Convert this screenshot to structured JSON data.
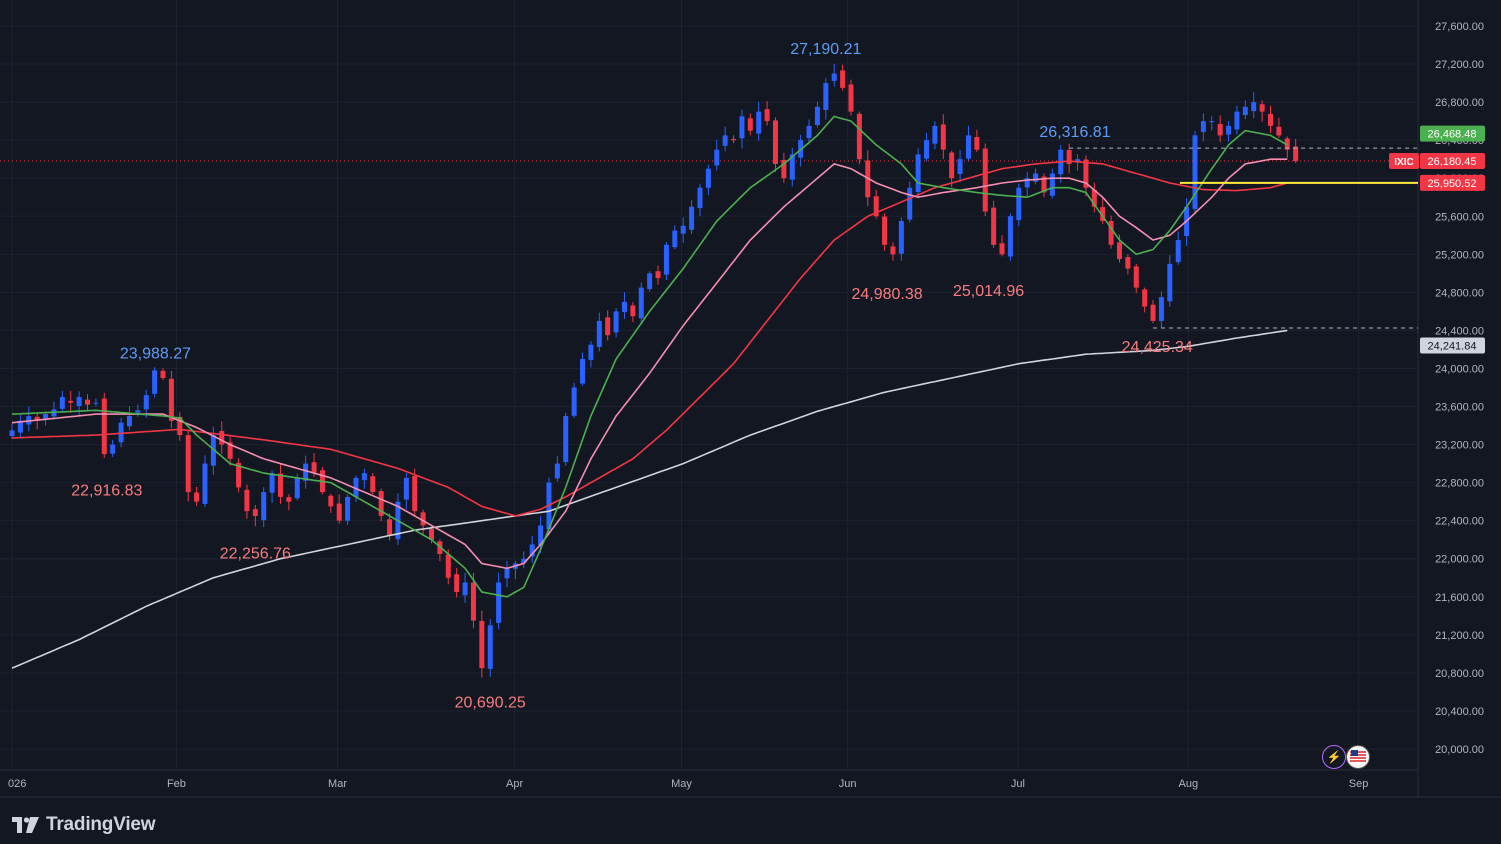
{
  "brand": {
    "name": "TradingView",
    "icon": "tradingview-logo-icon"
  },
  "util_icons": [
    "lightning-icon",
    "us-flag-icon"
  ],
  "colors": {
    "background": "#131722",
    "up": "#2962ff",
    "down": "#f23645",
    "ma_fast": "#4caf50",
    "ma_mid": "#f48fb1",
    "ma_slow": "#f23645",
    "ma_long": "#d1d4dc",
    "support": "#ffeb3b",
    "grid": "#1e2230",
    "axis_text": "#b2b5be"
  },
  "chart_data": {
    "type": "candlestick",
    "symbol": "IXIC",
    "y_range": [
      19860,
      27800
    ],
    "price_ticks": [
      "20,000.00",
      "20,400.00",
      "20,800.00",
      "21,200.00",
      "21,600.00",
      "22,000.00",
      "22,400.00",
      "22,800.00",
      "23,200.00",
      "23,600.00",
      "24,000.00",
      "24,400.00",
      "24,800.00",
      "25,200.00",
      "25,600.00",
      "26,000.00",
      "26,400.00",
      "26,800.00",
      "27,200.00",
      "27,600.00"
    ],
    "x_ticks": [
      {
        "label": "026",
        "x": 0
      },
      {
        "label": "Feb",
        "x": 19.6
      },
      {
        "label": "Mar",
        "x": 38.8
      },
      {
        "label": "Apr",
        "x": 59.9
      },
      {
        "label": "May",
        "x": 79.8
      },
      {
        "label": "Jun",
        "x": 99.6
      },
      {
        "label": "Jul",
        "x": 119.9
      },
      {
        "label": "Aug",
        "x": 140.2
      },
      {
        "label": "Sep",
        "x": 160.5
      }
    ],
    "x_range": [
      0,
      167.2
    ],
    "axis_badges": [
      {
        "label": "26,468.48",
        "value": 26468.48,
        "color": "#4caf50"
      },
      {
        "label": "26,180.45",
        "value": 26180.45,
        "color": "#f23645",
        "symbol": "IXIC"
      },
      {
        "label": "25,950.52",
        "value": 25950.52,
        "color": "#f23645"
      },
      {
        "label": "24,241.84",
        "value": 24241.84,
        "color": "#d1d4dc"
      }
    ],
    "annotations": [
      {
        "label": "23,988.27",
        "x": 17.1,
        "value": 23988.27,
        "kind": "high"
      },
      {
        "label": "22,916.83",
        "x": 11.3,
        "value": 22916.83,
        "kind": "low"
      },
      {
        "label": "22,256.76",
        "x": 29.0,
        "value": 22256.76,
        "kind": "low"
      },
      {
        "label": "20,690.25",
        "x": 57.0,
        "value": 20690.25,
        "kind": "low"
      },
      {
        "label": "27,190.21",
        "x": 97.0,
        "value": 27190.21,
        "kind": "high"
      },
      {
        "label": "24,980.38",
        "x": 104.3,
        "value": 24980.38,
        "kind": "low"
      },
      {
        "label": "25,014.96",
        "x": 116.4,
        "value": 25014.96,
        "kind": "low"
      },
      {
        "label": "26,316.81",
        "x": 126.7,
        "value": 26316.81,
        "kind": "high"
      },
      {
        "label": "24,425.34",
        "x": 136.5,
        "value": 24425.34,
        "kind": "low"
      }
    ],
    "levels": [
      {
        "name": "current",
        "value": 26180.45,
        "style": "dotted"
      },
      {
        "name": "resistance",
        "value": 26316.81,
        "style": "dashed",
        "x_from": 126.0
      },
      {
        "name": "support",
        "value": 25950.52,
        "style": "solid",
        "x_from": 139.2
      },
      {
        "name": "swing-low",
        "value": 24425.34,
        "style": "dashed",
        "x_from": 136.0
      }
    ],
    "candle_anchors": [
      [
        0,
        23350
      ],
      [
        1,
        23450
      ],
      [
        2,
        23500
      ],
      [
        3,
        23450
      ],
      [
        4,
        23520
      ],
      [
        5,
        23570
      ],
      [
        6,
        23700
      ],
      [
        7,
        23640
      ],
      [
        8,
        23700
      ],
      [
        9,
        23620
      ],
      [
        10,
        23640
      ],
      [
        11,
        23100
      ],
      [
        12,
        23200
      ],
      [
        13,
        23430
      ],
      [
        14,
        23500
      ],
      [
        15,
        23560
      ],
      [
        16,
        23720
      ],
      [
        17,
        23980
      ],
      [
        18,
        23900
      ],
      [
        19,
        23450
      ],
      [
        20,
        23300
      ],
      [
        21,
        22700
      ],
      [
        22,
        22600
      ],
      [
        23,
        23000
      ],
      [
        24,
        23300
      ],
      [
        25,
        23200
      ],
      [
        26,
        23050
      ],
      [
        27,
        22750
      ],
      [
        28,
        22500
      ],
      [
        29,
        22450
      ],
      [
        30,
        22700
      ],
      [
        31,
        22900
      ],
      [
        32,
        22650
      ],
      [
        33,
        22600
      ],
      [
        34,
        22850
      ],
      [
        35,
        23000
      ],
      [
        36,
        22900
      ],
      [
        37,
        22700
      ],
      [
        38,
        22550
      ],
      [
        39,
        22400
      ],
      [
        40,
        22650
      ],
      [
        41,
        22850
      ],
      [
        42,
        22900
      ],
      [
        43,
        22700
      ],
      [
        44,
        22450
      ],
      [
        45,
        22250
      ],
      [
        46,
        22600
      ],
      [
        47,
        22850
      ],
      [
        48,
        22500
      ],
      [
        49,
        22350
      ],
      [
        50,
        22200
      ],
      [
        51,
        22050
      ],
      [
        52,
        21800
      ],
      [
        53,
        21650
      ],
      [
        54,
        21750
      ],
      [
        55,
        21350
      ],
      [
        56,
        20850
      ],
      [
        57,
        21300
      ],
      [
        58,
        21750
      ],
      [
        59,
        21900
      ],
      [
        60,
        21950
      ],
      [
        61,
        22000
      ],
      [
        62,
        22150
      ],
      [
        63,
        22350
      ],
      [
        64,
        22800
      ],
      [
        65,
        23000
      ],
      [
        66,
        23500
      ],
      [
        67,
        23800
      ],
      [
        68,
        24100
      ],
      [
        69,
        24250
      ],
      [
        70,
        24500
      ],
      [
        71,
        24350
      ],
      [
        72,
        24600
      ],
      [
        73,
        24700
      ],
      [
        74,
        24550
      ],
      [
        75,
        24850
      ],
      [
        76,
        25000
      ],
      [
        77,
        24950
      ],
      [
        78,
        25300
      ],
      [
        79,
        25450
      ],
      [
        80,
        25500
      ],
      [
        81,
        25700
      ],
      [
        82,
        25900
      ],
      [
        83,
        26100
      ],
      [
        84,
        26300
      ],
      [
        85,
        26450
      ],
      [
        86,
        26400
      ],
      [
        87,
        26650
      ],
      [
        88,
        26500
      ],
      [
        89,
        26700
      ],
      [
        90,
        26600
      ],
      [
        91,
        26150
      ],
      [
        92,
        26000
      ],
      [
        93,
        26250
      ],
      [
        94,
        26400
      ],
      [
        95,
        26550
      ],
      [
        96,
        26750
      ],
      [
        97,
        27000
      ],
      [
        98,
        27100
      ],
      [
        99,
        26950
      ],
      [
        100,
        26700
      ],
      [
        101,
        26200
      ],
      [
        102,
        25800
      ],
      [
        103,
        25600
      ],
      [
        104,
        25300
      ],
      [
        105,
        25200
      ],
      [
        106,
        25550
      ],
      [
        107,
        25900
      ],
      [
        108,
        26250
      ],
      [
        109,
        26400
      ],
      [
        110,
        26550
      ],
      [
        111,
        26300
      ],
      [
        112,
        26000
      ],
      [
        113,
        26200
      ],
      [
        114,
        26450
      ],
      [
        115,
        26300
      ],
      [
        116,
        25650
      ],
      [
        117,
        25300
      ],
      [
        118,
        25200
      ],
      [
        119,
        25600
      ],
      [
        120,
        25900
      ],
      [
        121,
        26000
      ],
      [
        122,
        26050
      ],
      [
        123,
        25850
      ],
      [
        124,
        26050
      ],
      [
        125,
        26300
      ],
      [
        126,
        26150
      ],
      [
        127,
        26200
      ],
      [
        128,
        25900
      ],
      [
        129,
        25700
      ],
      [
        130,
        25550
      ],
      [
        131,
        25300
      ],
      [
        132,
        25150
      ],
      [
        133,
        25050
      ],
      [
        134,
        24850
      ],
      [
        135,
        24650
      ],
      [
        136,
        24500
      ],
      [
        137,
        24750
      ],
      [
        138,
        25100
      ],
      [
        139,
        25350
      ],
      [
        140,
        25700
      ],
      [
        141,
        26450
      ],
      [
        142,
        26600
      ],
      [
        143,
        26600
      ],
      [
        144,
        26450
      ],
      [
        145,
        26550
      ],
      [
        146,
        26700
      ],
      [
        147,
        26750
      ],
      [
        148,
        26800
      ],
      [
        149,
        26700
      ],
      [
        150,
        26550
      ],
      [
        151,
        26450
      ],
      [
        152,
        26300
      ],
      [
        153,
        26180
      ]
    ],
    "ma_fast_anchors": [
      [
        0,
        23520
      ],
      [
        10,
        23560
      ],
      [
        18,
        23500
      ],
      [
        20,
        23480
      ],
      [
        22,
        23300
      ],
      [
        26,
        23000
      ],
      [
        30,
        22900
      ],
      [
        34,
        22850
      ],
      [
        38,
        22800
      ],
      [
        42,
        22600
      ],
      [
        46,
        22400
      ],
      [
        50,
        22200
      ],
      [
        54,
        21900
      ],
      [
        56,
        21650
      ],
      [
        59,
        21600
      ],
      [
        61,
        21700
      ],
      [
        63,
        22100
      ],
      [
        66,
        22750
      ],
      [
        69,
        23500
      ],
      [
        72,
        24100
      ],
      [
        76,
        24600
      ],
      [
        80,
        25050
      ],
      [
        84,
        25550
      ],
      [
        88,
        25900
      ],
      [
        92,
        26150
      ],
      [
        96,
        26450
      ],
      [
        98,
        26650
      ],
      [
        100,
        26600
      ],
      [
        103,
        26350
      ],
      [
        106,
        26150
      ],
      [
        108,
        25950
      ],
      [
        111,
        25900
      ],
      [
        115,
        25850
      ],
      [
        118,
        25820
      ],
      [
        121,
        25800
      ],
      [
        124,
        25900
      ],
      [
        126,
        25900
      ],
      [
        128,
        25850
      ],
      [
        130,
        25600
      ],
      [
        132,
        25350
      ],
      [
        134,
        25200
      ],
      [
        136,
        25250
      ],
      [
        138,
        25450
      ],
      [
        140,
        25700
      ],
      [
        143,
        26100
      ],
      [
        145,
        26350
      ],
      [
        147,
        26500
      ],
      [
        150,
        26450
      ],
      [
        152,
        26350
      ]
    ],
    "ma_mid_anchors": [
      [
        0,
        23430
      ],
      [
        10,
        23520
      ],
      [
        18,
        23520
      ],
      [
        22,
        23380
      ],
      [
        26,
        23200
      ],
      [
        30,
        23050
      ],
      [
        34,
        22950
      ],
      [
        38,
        22850
      ],
      [
        42,
        22700
      ],
      [
        46,
        22550
      ],
      [
        50,
        22350
      ],
      [
        54,
        22150
      ],
      [
        56,
        21950
      ],
      [
        59,
        21900
      ],
      [
        61,
        21950
      ],
      [
        63,
        22150
      ],
      [
        66,
        22500
      ],
      [
        69,
        23050
      ],
      [
        72,
        23500
      ],
      [
        76,
        23950
      ],
      [
        80,
        24450
      ],
      [
        84,
        24900
      ],
      [
        88,
        25350
      ],
      [
        92,
        25700
      ],
      [
        96,
        26000
      ],
      [
        98,
        26150
      ],
      [
        100,
        26100
      ],
      [
        103,
        25950
      ],
      [
        106,
        25850
      ],
      [
        108,
        25800
      ],
      [
        111,
        25850
      ],
      [
        115,
        25900
      ],
      [
        118,
        25950
      ],
      [
        121,
        25980
      ],
      [
        124,
        26000
      ],
      [
        126,
        26000
      ],
      [
        128,
        25950
      ],
      [
        130,
        25800
      ],
      [
        132,
        25600
      ],
      [
        134,
        25480
      ],
      [
        136,
        25350
      ],
      [
        138,
        25400
      ],
      [
        140,
        25550
      ],
      [
        143,
        25800
      ],
      [
        145,
        26000
      ],
      [
        147,
        26150
      ],
      [
        150,
        26200
      ],
      [
        152,
        26200
      ]
    ],
    "ma_slow_anchors": [
      [
        0,
        23270
      ],
      [
        10,
        23300
      ],
      [
        20,
        23360
      ],
      [
        30,
        23250
      ],
      [
        38,
        23150
      ],
      [
        46,
        22950
      ],
      [
        52,
        22750
      ],
      [
        56,
        22550
      ],
      [
        60,
        22450
      ],
      [
        63,
        22520
      ],
      [
        66,
        22650
      ],
      [
        70,
        22850
      ],
      [
        74,
        23050
      ],
      [
        78,
        23350
      ],
      [
        82,
        23700
      ],
      [
        86,
        24050
      ],
      [
        90,
        24500
      ],
      [
        94,
        24950
      ],
      [
        98,
        25350
      ],
      [
        102,
        25600
      ],
      [
        106,
        25750
      ],
      [
        110,
        25900
      ],
      [
        114,
        26000
      ],
      [
        118,
        26100
      ],
      [
        122,
        26150
      ],
      [
        126,
        26180
      ],
      [
        130,
        26150
      ],
      [
        134,
        26050
      ],
      [
        138,
        25950
      ],
      [
        142,
        25880
      ],
      [
        146,
        25870
      ],
      [
        150,
        25900
      ],
      [
        152,
        25950
      ]
    ],
    "ma_long_anchors": [
      [
        0,
        20850
      ],
      [
        8,
        21150
      ],
      [
        16,
        21500
      ],
      [
        24,
        21800
      ],
      [
        32,
        22000
      ],
      [
        40,
        22150
      ],
      [
        48,
        22300
      ],
      [
        56,
        22400
      ],
      [
        64,
        22500
      ],
      [
        72,
        22750
      ],
      [
        80,
        23000
      ],
      [
        88,
        23300
      ],
      [
        96,
        23550
      ],
      [
        104,
        23750
      ],
      [
        112,
        23900
      ],
      [
        120,
        24050
      ],
      [
        128,
        24150
      ],
      [
        136,
        24190
      ],
      [
        140,
        24230
      ],
      [
        146,
        24320
      ],
      [
        152,
        24400
      ]
    ]
  }
}
